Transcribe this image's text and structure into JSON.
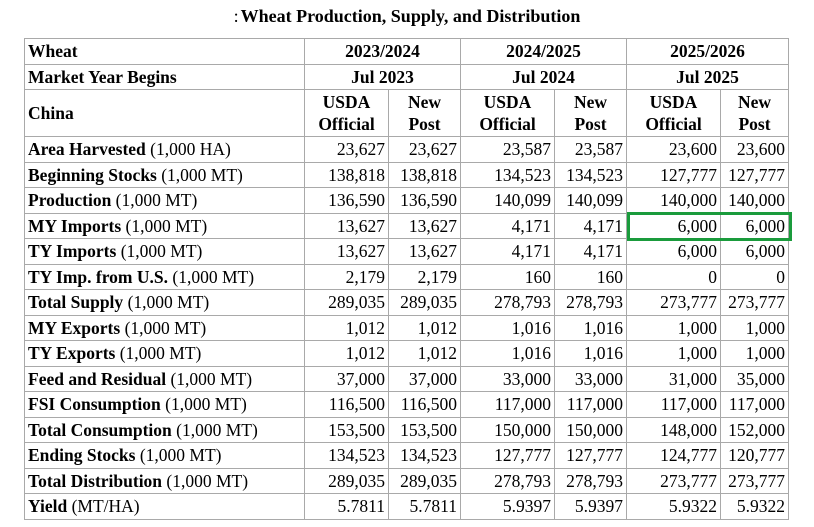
{
  "title": {
    "prefix": ":",
    "text": "Wheat Production, Supply, and Distribution"
  },
  "header": {
    "commodity": "Wheat",
    "market_year_label": "Market Year Begins",
    "country": "China",
    "years": [
      {
        "label": "2023/2024",
        "begins": "Jul 2023"
      },
      {
        "label": "2024/2025",
        "begins": "Jul 2024"
      },
      {
        "label": "2025/2026",
        "begins": "Jul 2025"
      }
    ],
    "col_usda_1": "USDA",
    "col_usda_2": "Official",
    "col_new_1": "New",
    "col_new_2": "Post"
  },
  "rows": [
    {
      "name": "Area Harvested",
      "unit": "(1,000 HA)",
      "values": [
        "23,627",
        "23,627",
        "23,587",
        "23,587",
        "23,600",
        "23,600"
      ]
    },
    {
      "name": "Beginning Stocks",
      "unit": "(1,000 MT)",
      "values": [
        "138,818",
        "138,818",
        "134,523",
        "134,523",
        "127,777",
        "127,777"
      ]
    },
    {
      "name": "Production",
      "unit": "(1,000 MT)",
      "values": [
        "136,590",
        "136,590",
        "140,099",
        "140,099",
        "140,000",
        "140,000"
      ]
    },
    {
      "name": "MY Imports",
      "unit": "(1,000 MT)",
      "values": [
        "13,627",
        "13,627",
        "4,171",
        "4,171",
        "6,000",
        "6,000"
      ]
    },
    {
      "name": "TY Imports",
      "unit": "(1,000 MT)",
      "values": [
        "13,627",
        "13,627",
        "4,171",
        "4,171",
        "6,000",
        "6,000"
      ]
    },
    {
      "name": "TY Imp. from U.S.",
      "unit": "(1,000 MT)",
      "values": [
        "2,179",
        "2,179",
        "160",
        "160",
        "0",
        "0"
      ]
    },
    {
      "name": "Total Supply",
      "unit": "(1,000 MT)",
      "values": [
        "289,035",
        "289,035",
        "278,793",
        "278,793",
        "273,777",
        "273,777"
      ]
    },
    {
      "name": "MY Exports",
      "unit": "(1,000 MT)",
      "values": [
        "1,012",
        "1,012",
        "1,016",
        "1,016",
        "1,000",
        "1,000"
      ]
    },
    {
      "name": "TY Exports",
      "unit": "(1,000 MT)",
      "values": [
        "1,012",
        "1,012",
        "1,016",
        "1,016",
        "1,000",
        "1,000"
      ]
    },
    {
      "name": "Feed and Residual",
      "unit": "(1,000 MT)",
      "values": [
        "37,000",
        "37,000",
        "33,000",
        "33,000",
        "31,000",
        "35,000"
      ]
    },
    {
      "name": "FSI Consumption",
      "unit": "(1,000 MT)",
      "values": [
        "116,500",
        "116,500",
        "117,000",
        "117,000",
        "117,000",
        "117,000"
      ]
    },
    {
      "name": "Total Consumption",
      "unit": "(1,000 MT)",
      "values": [
        "153,500",
        "153,500",
        "150,000",
        "150,000",
        "148,000",
        "152,000"
      ]
    },
    {
      "name": "Ending Stocks",
      "unit": "(1,000 MT)",
      "values": [
        "134,523",
        "134,523",
        "127,777",
        "127,777",
        "124,777",
        "120,777"
      ]
    },
    {
      "name": "Total Distribution",
      "unit": "(1,000 MT)",
      "values": [
        "289,035",
        "289,035",
        "278,793",
        "278,793",
        "273,777",
        "273,777"
      ]
    },
    {
      "name": "Yield",
      "unit": "(MT/HA)",
      "values": [
        "5.7811",
        "5.7811",
        "5.9397",
        "5.9397",
        "5.9322",
        "5.9322"
      ]
    }
  ],
  "highlight_color": "#1a9b3c",
  "highlighted_row": "MY Imports",
  "highlighted_year": "2025/2026"
}
